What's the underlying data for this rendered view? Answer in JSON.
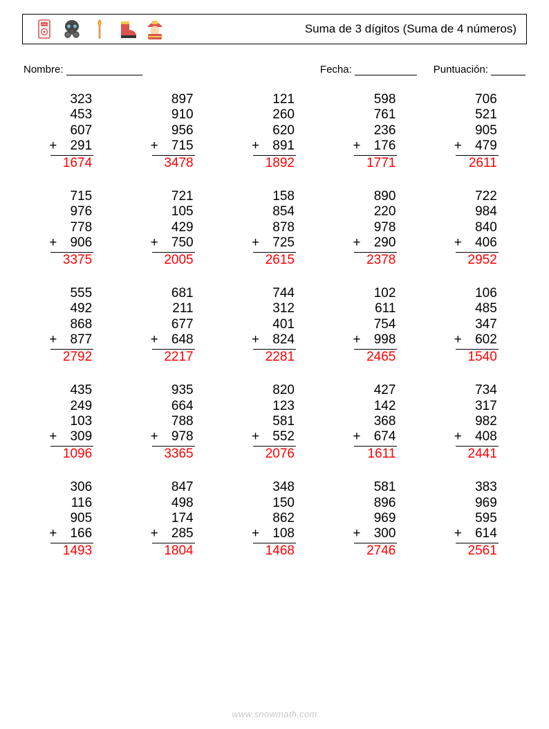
{
  "header": {
    "title": "Suma de 3 dígitos (Suma de 4 números)",
    "icons": [
      "fire-alarm",
      "gas-mask",
      "match",
      "boot",
      "firefighter"
    ]
  },
  "info": {
    "name_label": "Nombre:",
    "date_label": "Fecha:",
    "score_label": "Puntuación:"
  },
  "style": {
    "answer_color": "#ff0000",
    "text_color": "#000000",
    "border_color": "#000000",
    "footer_color": "#c8c8c8",
    "background": "#ffffff",
    "font_size_problem": 19,
    "columns": 5,
    "rows": 5,
    "operator": "+"
  },
  "problems": [
    {
      "addends": [
        323,
        453,
        607,
        291
      ],
      "answer": 1674
    },
    {
      "addends": [
        897,
        910,
        956,
        715
      ],
      "answer": 3478
    },
    {
      "addends": [
        121,
        260,
        620,
        891
      ],
      "answer": 1892
    },
    {
      "addends": [
        598,
        761,
        236,
        176
      ],
      "answer": 1771
    },
    {
      "addends": [
        706,
        521,
        905,
        479
      ],
      "answer": 2611
    },
    {
      "addends": [
        715,
        976,
        778,
        906
      ],
      "answer": 3375
    },
    {
      "addends": [
        721,
        105,
        429,
        750
      ],
      "answer": 2005
    },
    {
      "addends": [
        158,
        854,
        878,
        725
      ],
      "answer": 2615
    },
    {
      "addends": [
        890,
        220,
        978,
        290
      ],
      "answer": 2378
    },
    {
      "addends": [
        722,
        984,
        840,
        406
      ],
      "answer": 2952
    },
    {
      "addends": [
        555,
        492,
        868,
        877
      ],
      "answer": 2792
    },
    {
      "addends": [
        681,
        211,
        677,
        648
      ],
      "answer": 2217
    },
    {
      "addends": [
        744,
        312,
        401,
        824
      ],
      "answer": 2281
    },
    {
      "addends": [
        102,
        611,
        754,
        998
      ],
      "answer": 2465
    },
    {
      "addends": [
        106,
        485,
        347,
        602
      ],
      "answer": 1540
    },
    {
      "addends": [
        435,
        249,
        103,
        309
      ],
      "answer": 1096
    },
    {
      "addends": [
        935,
        664,
        788,
        978
      ],
      "answer": 3365
    },
    {
      "addends": [
        820,
        123,
        581,
        552
      ],
      "answer": 2076
    },
    {
      "addends": [
        427,
        142,
        368,
        674
      ],
      "answer": 1611
    },
    {
      "addends": [
        734,
        317,
        982,
        408
      ],
      "answer": 2441
    },
    {
      "addends": [
        306,
        116,
        905,
        166
      ],
      "answer": 1493
    },
    {
      "addends": [
        847,
        498,
        174,
        285
      ],
      "answer": 1804
    },
    {
      "addends": [
        348,
        150,
        862,
        108
      ],
      "answer": 1468
    },
    {
      "addends": [
        581,
        896,
        969,
        300
      ],
      "answer": 2746
    },
    {
      "addends": [
        383,
        969,
        595,
        614
      ],
      "answer": 2561
    }
  ],
  "footer": "www.snowmath.com"
}
